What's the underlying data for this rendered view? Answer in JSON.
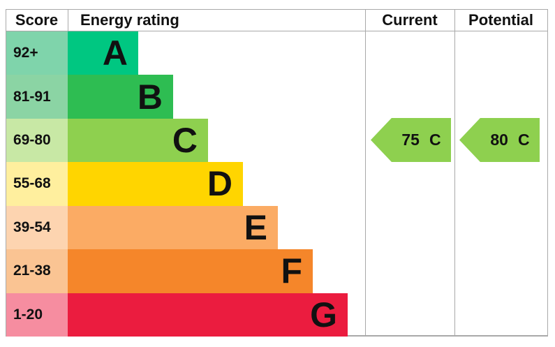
{
  "header": {
    "score": "Score",
    "energy_rating": "Energy rating",
    "current": "Current",
    "potential": "Potential"
  },
  "bands": [
    {
      "label": "A",
      "score_range": "92+",
      "color": "#00c781",
      "tint": "#7fd4ab"
    },
    {
      "label": "B",
      "score_range": "81-91",
      "color": "#2ebd52",
      "tint": "#8bd4a4"
    },
    {
      "label": "C",
      "score_range": "69-80",
      "color": "#8ed04f",
      "tint": "#c8e8a5"
    },
    {
      "label": "D",
      "score_range": "55-68",
      "color": "#ffd500",
      "tint": "#ffef9e"
    },
    {
      "label": "E",
      "score_range": "39-54",
      "color": "#fbab64",
      "tint": "#fdd4b0"
    },
    {
      "label": "F",
      "score_range": "21-38",
      "color": "#f5862a",
      "tint": "#fac493"
    },
    {
      "label": "G",
      "score_range": "1-20",
      "color": "#eb1c3f",
      "tint": "#f68da0"
    }
  ],
  "current": {
    "value": "75",
    "band": "C",
    "arrow_color": "#8ed04f"
  },
  "potential": {
    "value": "80",
    "band": "C",
    "arrow_color": "#8ed04f"
  },
  "colors": {
    "grid_line": "#a9a9a9",
    "text": "#111111",
    "background": "#ffffff"
  },
  "chart_data": {
    "type": "bar",
    "title": "Energy rating",
    "columns": [
      "Score",
      "Energy rating",
      "Current",
      "Potential"
    ],
    "categories": [
      "A",
      "B",
      "C",
      "D",
      "E",
      "F",
      "G"
    ],
    "score_ranges": [
      "92+",
      "81-91",
      "69-80",
      "55-68",
      "39-54",
      "21-38",
      "1-20"
    ],
    "bar_colors": [
      "#00c781",
      "#2ebd52",
      "#8ed04f",
      "#ffd500",
      "#fbab64",
      "#f5862a",
      "#eb1c3f"
    ],
    "bar_relative_lengths": [
      1,
      1.5,
      2,
      2.5,
      3,
      3.5,
      4
    ],
    "current": {
      "score": 75,
      "band": "C"
    },
    "potential": {
      "score": 80,
      "band": "C"
    },
    "legend_position": "none",
    "grid": "column-separators-only"
  }
}
